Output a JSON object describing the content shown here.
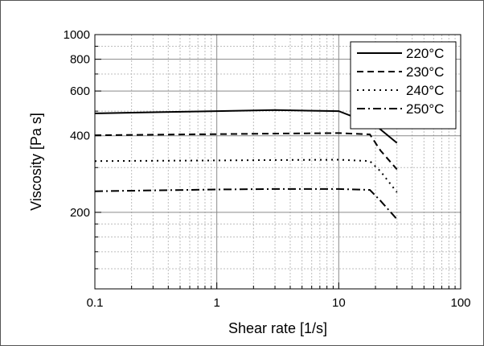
{
  "chart_data": {
    "type": "line",
    "xlabel": "Shear rate [1/s]",
    "ylabel": "Viscosity [Pa s]",
    "xscale": "log",
    "yscale": "log",
    "xlim": [
      0.1,
      100
    ],
    "ylim": [
      100,
      1000
    ],
    "xticks": [
      0.1,
      1,
      10,
      100
    ],
    "xtick_labels": [
      "0.1",
      "1",
      "10",
      "100"
    ],
    "yticks": [
      200,
      400,
      600,
      800,
      1000
    ],
    "ytick_labels": [
      "200",
      "400",
      "600",
      "800",
      "1000"
    ],
    "grid": true,
    "legend_position": "top-right",
    "series": [
      {
        "name": "220°C",
        "dash": "solid",
        "x": [
          0.1,
          0.3,
          1,
          3,
          10,
          20,
          30
        ],
        "y": [
          490,
          495,
          500,
          505,
          500,
          440,
          375
        ]
      },
      {
        "name": "230°C",
        "dash": "dashed",
        "x": [
          0.1,
          0.3,
          1,
          3,
          10,
          18,
          22,
          30
        ],
        "y": [
          402,
          404,
          406,
          408,
          410,
          405,
          350,
          295
        ]
      },
      {
        "name": "240°C",
        "dash": "dotted",
        "x": [
          0.1,
          0.3,
          1,
          3,
          10,
          18,
          22,
          30
        ],
        "y": [
          318,
          319,
          320,
          321,
          322,
          318,
          290,
          240
        ]
      },
      {
        "name": "250°C",
        "dash": "dashdot",
        "x": [
          0.1,
          0.3,
          1,
          3,
          10,
          18,
          22,
          30
        ],
        "y": [
          242,
          244,
          246,
          247,
          247,
          245,
          222,
          188
        ]
      }
    ]
  }
}
